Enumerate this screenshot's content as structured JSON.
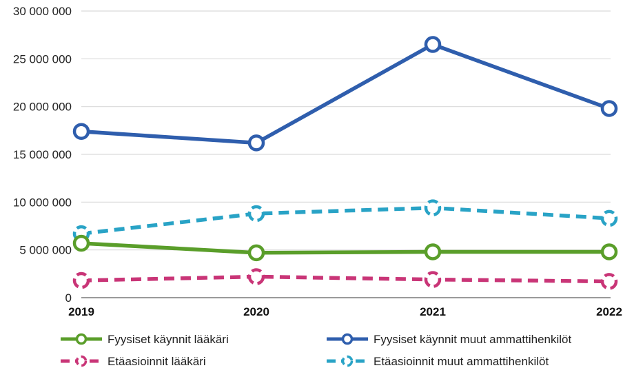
{
  "chart_data": {
    "type": "line",
    "categories": [
      "2019",
      "2020",
      "2021",
      "2022"
    ],
    "ylim": [
      0,
      30000000
    ],
    "yticks": [
      0,
      5000000,
      10000000,
      15000000,
      20000000,
      25000000,
      30000000
    ],
    "ytick_labels": [
      "0",
      "5 000 000",
      "10 000 000",
      "15 000 000",
      "20 000 000",
      "25 000 000",
      "30 000 000"
    ],
    "grid": true,
    "legend_position": "bottom",
    "series": [
      {
        "name": "Fyysiset käynnit lääkäri",
        "values": [
          5700000,
          4700000,
          4800000,
          4800000
        ],
        "color": "#5a9e2a",
        "dashed": false
      },
      {
        "name": "Fyysiset käynnit muut ammattihenkilöt",
        "values": [
          17400000,
          16200000,
          26500000,
          19800000
        ],
        "color": "#2f5ead",
        "dashed": false
      },
      {
        "name": "Etäasioinnit lääkäri",
        "values": [
          1800000,
          2200000,
          1900000,
          1700000
        ],
        "color": "#c93577",
        "dashed": true
      },
      {
        "name": "Etäasioinnit muut ammattihenkilöt",
        "values": [
          6700000,
          8800000,
          9400000,
          8300000
        ],
        "color": "#29a3c6",
        "dashed": true
      }
    ]
  }
}
